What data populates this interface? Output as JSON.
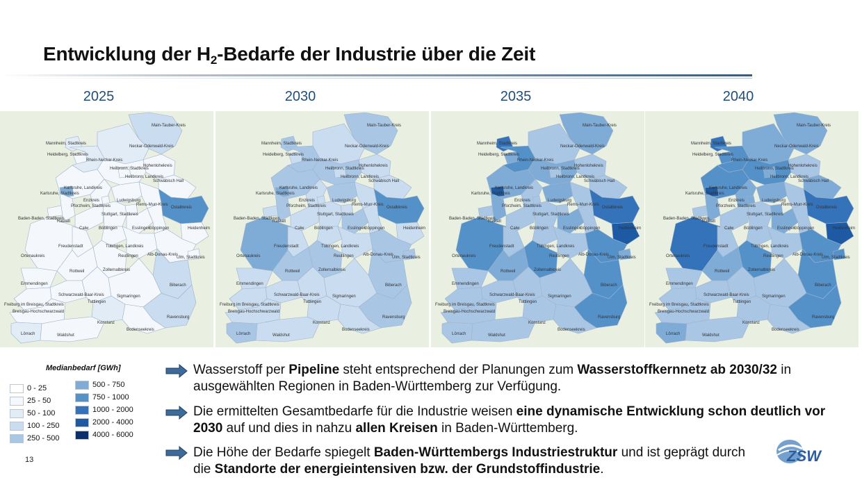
{
  "slide": {
    "title_main": "Entwicklung der H",
    "title_sub": "2",
    "title_rest": "-Bedarfe der Industrie über die Zeit",
    "page_number": "13"
  },
  "years": [
    "2025",
    "2030",
    "2035",
    "2040"
  ],
  "map_labels": {
    "main_tauber": "Main-Tauber-Kreis",
    "mannheim": "Mannheim, Stadtkreis",
    "neckar_odenwald": "Neckar-Odenwald-Kreis",
    "heidelberg": "Heidelberg, Stadtkreis",
    "rhein_neckar": "Rhein-Neckar-Kreis",
    "hohenlohe": "Hohenlohekreis",
    "heilbronn_sk": "Heilbronn, Stadtkreis",
    "heilbronn_lk": "Heilbronn, Landkreis",
    "schwaebisch_hall": "Schwäbisch Hall",
    "karlsruhe_lk": "Karlsruhe, Landkreis",
    "karlsruhe_sk": "Karlsruhe, Stadtkreis",
    "enzkreis": "Enzkreis",
    "pforzheim": "Pforzheim, Stadtkreis",
    "ludwigsburg": "Ludwigsburg",
    "rems_murr": "Rems-Murr-Kreis",
    "ostalbkreis": "Ostalbkreis",
    "baden_baden": "Baden-Baden, Stadtkreis",
    "rastatt": "Rastatt",
    "stuttgart": "Stuttgart, Stadtkreis",
    "calw": "Calw",
    "boeblingen": "Böblingen",
    "esslingen": "Esslingen",
    "goeppingen": "Göppingen",
    "heidenheim": "Heidenheim",
    "freudenstadt": "Freudenstadt",
    "ortenaukreis": "Ortenaukreis",
    "tuebingen": "Tübingen, Landkreis",
    "reutlingen": "Reutlingen",
    "alb_donau": "Alb-Donau-Kreis",
    "ulm": "Ulm, Stadtkreis",
    "rottweil": "Rottweil",
    "zollernalb": "Zollernalbkreis",
    "emmendingen": "Emmendingen",
    "biberach": "Biberach",
    "schwarzwald_baar": "Schwarzwald-Baar-Kreis",
    "tuttlingen": "Tuttlingen",
    "sigmaringen": "Sigmaringen",
    "freiburg": "Freiburg im Breisgau, Stadtkreis",
    "breisgau": "Breisgau-Hochschwarzwald",
    "ravensburg": "Ravensburg",
    "konstanz": "Konstanz",
    "loerrach": "Lörrach",
    "waldshut": "Waldshut",
    "bodenseekreis": "Bodenseekreis"
  },
  "legend": {
    "title": "Medianbedarf [GWh]",
    "items": [
      {
        "label": "0 - 25",
        "color": "#ffffff"
      },
      {
        "label": "25 - 50",
        "color": "#f4f8fc"
      },
      {
        "label": "50 - 100",
        "color": "#e2ecf7"
      },
      {
        "label": "100 - 250",
        "color": "#cadcef"
      },
      {
        "label": "250 - 500",
        "color": "#a9c6e5"
      },
      {
        "label": "500 - 750",
        "color": "#7fabd7"
      },
      {
        "label": "750 - 1000",
        "color": "#5591c9"
      },
      {
        "label": "1000 - 2000",
        "color": "#3473b9"
      },
      {
        "label": "2000 - 4000",
        "color": "#1d5aa3"
      },
      {
        "label": "4000 - 6000",
        "color": "#0d2f6b"
      }
    ]
  },
  "bullets": [
    {
      "p1": "Wasserstoff per ",
      "b1": "Pipeline",
      "p2": " steht entsprechend der Planungen zum ",
      "b2": "Wasserstoffkernnetz ab 2030/32",
      "p3": " in ausgewählten Regionen in Baden-Württemberg zur Verfügung."
    },
    {
      "p1": "Die ermittelten Gesamtbedarfe für die Industrie weisen ",
      "b1": "eine dynamische Entwicklung schon deutlich vor 2030",
      "p2": " auf und dies in nahzu ",
      "b2": "allen Kreisen",
      "p3": " in Baden-Württemberg."
    },
    {
      "p1": "Die Höhe der Bedarfe spiegelt ",
      "b1": "Baden-Württembergs Industriestruktur",
      "p2": " und ist geprägt durch die ",
      "b2": "Standorte der energieintensiven bzw. der Grundstoffindustrie",
      "p3": "."
    }
  ],
  "logo": {
    "text": "ZSW"
  },
  "colors": {
    "title_rule": "#2a5e8c",
    "year_text": "#1f4e79",
    "map_background": "#e9efe1",
    "arrow": "#3d6b99"
  }
}
